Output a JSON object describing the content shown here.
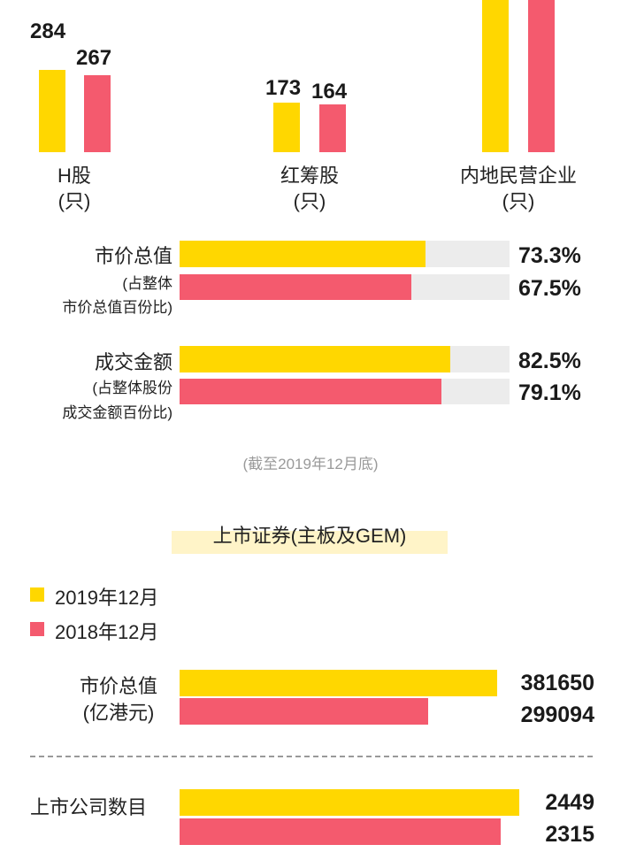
{
  "colors": {
    "y2019": "#FFD700",
    "y2018": "#F45A6E",
    "track": "#ECECEC",
    "highlight": "#FFF4C8"
  },
  "counts": {
    "groups": [
      {
        "name": "H股",
        "unit": "(只)",
        "v2019": "284",
        "v2018": "267"
      },
      {
        "name": "红筹股",
        "unit": "(只)",
        "v2019": "173",
        "v2018": "164"
      },
      {
        "name": "内地民营企业",
        "unit": "(只)"
      }
    ]
  },
  "share": {
    "market_cap": {
      "label1": "市价总值",
      "label2": "(占整体",
      "label3": "市价总值百份比)",
      "v2019": "73.3%",
      "v2018": "67.5%"
    },
    "turnover": {
      "label1": "成交金额",
      "label2": "(占整体股份",
      "label3": "成交金额百份比)",
      "v2019": "82.5%",
      "v2018": "79.1%"
    }
  },
  "note": "(截至2019年12月底)",
  "section_title": "上市证券(主板及GEM)",
  "legend": {
    "y2019": "2019年12月",
    "y2018": "2018年12月"
  },
  "market": {
    "cap": {
      "label1": "市价总值",
      "label2": "(亿港元)",
      "v2019": "381650",
      "v2018": "299094"
    },
    "companies": {
      "label": "上市公司数目",
      "v2019": "2449",
      "v2018": "2315"
    }
  },
  "chart_data": [
    {
      "type": "bar",
      "categories": [
        "H股",
        "红筹股",
        "内地民营企业"
      ],
      "series": [
        {
          "name": "2019年12月",
          "values": [
            284,
            173,
            null
          ]
        },
        {
          "name": "2018年12月",
          "values": [
            267,
            164,
            null
          ]
        }
      ]
    },
    {
      "type": "bar",
      "categories": [
        "市价总值",
        "成交金额"
      ],
      "series": [
        {
          "name": "2019年12月",
          "values": [
            73.3,
            82.5
          ]
        },
        {
          "name": "2018年12月",
          "values": [
            67.5,
            79.1
          ]
        }
      ],
      "ylim": [
        0,
        100
      ]
    },
    {
      "type": "bar",
      "categories": [
        "市价总值"
      ],
      "series": [
        {
          "name": "2019年12月",
          "values": [
            381650
          ]
        },
        {
          "name": "2018年12月",
          "values": [
            299094
          ]
        }
      ]
    },
    {
      "type": "bar",
      "categories": [
        "上市公司数目"
      ],
      "series": [
        {
          "name": "2019年12月",
          "values": [
            2449
          ]
        },
        {
          "name": "2018年12月",
          "values": [
            2315
          ]
        }
      ]
    }
  ]
}
